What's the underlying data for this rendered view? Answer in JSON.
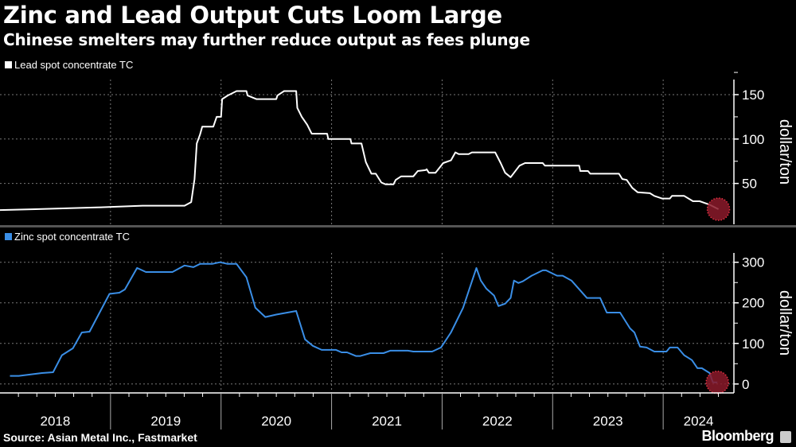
{
  "header": {
    "title": "Zinc and Lead Output Cuts Loom Large",
    "subtitle": "Chinese smelters may further reduce output as fees plunge"
  },
  "footer": {
    "source": "Source: Asian Metal Inc., Fastmarket",
    "brand": "Bloomberg"
  },
  "colors": {
    "lead": "#ffffff",
    "zinc": "#3a8ee6",
    "highlight": "#8b1a2a",
    "grid": "#777777",
    "separator": "#555555"
  },
  "chart_data": [
    {
      "type": "line",
      "title": "Lead spot concentrate TC",
      "legend": "Lead spot concentrate TC",
      "legend_position": "top-left",
      "ylabel": "dollar/ton",
      "ylim": [
        4,
        167
      ],
      "yticks": [
        50,
        100,
        150
      ],
      "xlim": [
        2018.0,
        2024.64
      ],
      "grid": true,
      "highlight_last_point": true,
      "points": [
        [
          2018.0,
          20
        ],
        [
          2018.32,
          21
        ],
        [
          2018.6,
          22
        ],
        [
          2018.88,
          23
        ],
        [
          2019.29,
          25
        ],
        [
          2019.67,
          25
        ],
        [
          2019.73,
          29
        ],
        [
          2019.76,
          55
        ],
        [
          2019.78,
          95
        ],
        [
          2019.81,
          105
        ],
        [
          2019.83,
          114
        ],
        [
          2019.93,
          114
        ],
        [
          2019.96,
          125
        ],
        [
          2020.0,
          125
        ],
        [
          2020.01,
          145
        ],
        [
          2020.06,
          149
        ],
        [
          2020.14,
          154
        ],
        [
          2020.23,
          154
        ],
        [
          2020.24,
          149
        ],
        [
          2020.32,
          145
        ],
        [
          2020.5,
          145
        ],
        [
          2020.51,
          149
        ],
        [
          2020.57,
          154
        ],
        [
          2020.68,
          154
        ],
        [
          2020.69,
          135
        ],
        [
          2020.73,
          125
        ],
        [
          2020.78,
          116
        ],
        [
          2020.82,
          106
        ],
        [
          2020.96,
          106
        ],
        [
          2020.97,
          100
        ],
        [
          2021.17,
          100
        ],
        [
          2021.18,
          95
        ],
        [
          2021.27,
          95
        ],
        [
          2021.31,
          74
        ],
        [
          2021.36,
          61
        ],
        [
          2021.4,
          61
        ],
        [
          2021.45,
          51
        ],
        [
          2021.49,
          49
        ],
        [
          2021.56,
          49
        ],
        [
          2021.58,
          54
        ],
        [
          2021.63,
          58
        ],
        [
          2021.74,
          58
        ],
        [
          2021.78,
          64
        ],
        [
          2021.85,
          65
        ],
        [
          2021.86,
          66
        ],
        [
          2021.88,
          62
        ],
        [
          2021.94,
          62
        ],
        [
          2022.01,
          73
        ],
        [
          2022.08,
          76
        ],
        [
          2022.12,
          85
        ],
        [
          2022.15,
          83
        ],
        [
          2022.24,
          83
        ],
        [
          2022.27,
          85
        ],
        [
          2022.48,
          85
        ],
        [
          2022.53,
          73
        ],
        [
          2022.57,
          62
        ],
        [
          2022.62,
          57
        ],
        [
          2022.7,
          70
        ],
        [
          2022.75,
          73
        ],
        [
          2022.91,
          73
        ],
        [
          2022.93,
          70
        ],
        [
          2023.24,
          70
        ],
        [
          2023.25,
          64
        ],
        [
          2023.32,
          64
        ],
        [
          2023.34,
          61
        ],
        [
          2023.6,
          61
        ],
        [
          2023.63,
          55
        ],
        [
          2023.67,
          54
        ],
        [
          2023.72,
          45
        ],
        [
          2023.77,
          40
        ],
        [
          2023.88,
          39
        ],
        [
          2023.92,
          36
        ],
        [
          2023.99,
          33
        ],
        [
          2024.06,
          33
        ],
        [
          2024.08,
          36
        ],
        [
          2024.19,
          36
        ],
        [
          2024.27,
          30
        ],
        [
          2024.33,
          30
        ],
        [
          2024.42,
          26
        ],
        [
          2024.5,
          21
        ]
      ]
    },
    {
      "type": "line",
      "title": "Zinc spot concentrate TC",
      "legend": "Zinc spot concentrate TC",
      "legend_position": "top-left",
      "ylabel": "dollar/ton",
      "ylim": [
        -22,
        323
      ],
      "yticks": [
        0,
        100,
        200,
        300
      ],
      "xlim": [
        2018.0,
        2024.64
      ],
      "xticks": [
        "2018",
        "2019",
        "2020",
        "2021",
        "2022",
        "2023",
        "2024"
      ],
      "grid": true,
      "highlight_last_point": true,
      "points": [
        [
          2018.09,
          20
        ],
        [
          2018.17,
          20
        ],
        [
          2018.38,
          27
        ],
        [
          2018.48,
          29
        ],
        [
          2018.56,
          71
        ],
        [
          2018.66,
          88
        ],
        [
          2018.74,
          127
        ],
        [
          2018.81,
          129
        ],
        [
          2018.99,
          222
        ],
        [
          2019.08,
          225
        ],
        [
          2019.13,
          233
        ],
        [
          2019.24,
          286
        ],
        [
          2019.32,
          276
        ],
        [
          2019.56,
          276
        ],
        [
          2019.67,
          292
        ],
        [
          2019.75,
          288
        ],
        [
          2019.81,
          296
        ],
        [
          2019.92,
          296
        ],
        [
          2019.99,
          300
        ],
        [
          2020.06,
          296
        ],
        [
          2020.14,
          296
        ],
        [
          2020.23,
          263
        ],
        [
          2020.31,
          188
        ],
        [
          2020.4,
          165
        ],
        [
          2020.5,
          171
        ],
        [
          2020.68,
          180
        ],
        [
          2020.76,
          110
        ],
        [
          2020.83,
          94
        ],
        [
          2020.91,
          84
        ],
        [
          2021.04,
          84
        ],
        [
          2021.09,
          78
        ],
        [
          2021.14,
          78
        ],
        [
          2021.22,
          69
        ],
        [
          2021.26,
          69
        ],
        [
          2021.35,
          76
        ],
        [
          2021.47,
          76
        ],
        [
          2021.53,
          82
        ],
        [
          2021.69,
          82
        ],
        [
          2021.74,
          80
        ],
        [
          2021.91,
          80
        ],
        [
          2021.99,
          90
        ],
        [
          2022.08,
          127
        ],
        [
          2022.19,
          188
        ],
        [
          2022.26,
          245
        ],
        [
          2022.31,
          286
        ],
        [
          2022.35,
          255
        ],
        [
          2022.4,
          235
        ],
        [
          2022.47,
          218
        ],
        [
          2022.51,
          192
        ],
        [
          2022.57,
          198
        ],
        [
          2022.62,
          212
        ],
        [
          2022.65,
          255
        ],
        [
          2022.69,
          249
        ],
        [
          2022.73,
          253
        ],
        [
          2022.81,
          267
        ],
        [
          2022.91,
          280
        ],
        [
          2022.94,
          280
        ],
        [
          2023.04,
          267
        ],
        [
          2023.09,
          267
        ],
        [
          2023.17,
          255
        ],
        [
          2023.31,
          212
        ],
        [
          2023.43,
          212
        ],
        [
          2023.49,
          176
        ],
        [
          2023.61,
          176
        ],
        [
          2023.7,
          137
        ],
        [
          2023.74,
          127
        ],
        [
          2023.79,
          92
        ],
        [
          2023.85,
          90
        ],
        [
          2023.92,
          80
        ],
        [
          2024.03,
          80
        ],
        [
          2024.06,
          90
        ],
        [
          2024.13,
          90
        ],
        [
          2024.19,
          71
        ],
        [
          2024.26,
          59
        ],
        [
          2024.31,
          39
        ],
        [
          2024.35,
          39
        ],
        [
          2024.42,
          27
        ],
        [
          2024.45,
          4
        ],
        [
          2024.49,
          4
        ]
      ]
    }
  ]
}
